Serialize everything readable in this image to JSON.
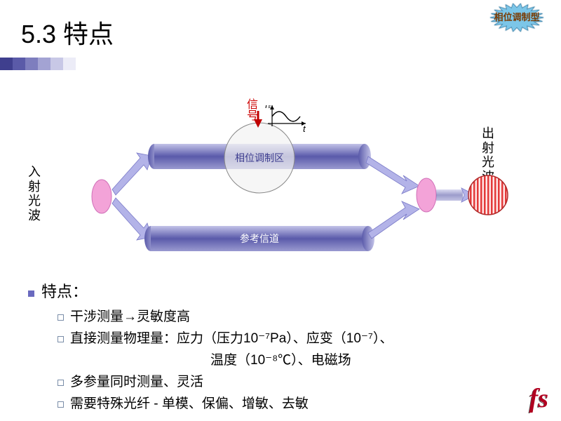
{
  "title": "5.3 特点",
  "titlebar_colors": [
    "#3f3f8e",
    "#5a5aa8",
    "#7e7ebe",
    "#a3a3d3",
    "#c8c8e6",
    "#ececf7",
    "#ffffff"
  ],
  "starburst": {
    "fill": "#7cc6e8",
    "stroke": "#4a90b8",
    "text": "相位调制型"
  },
  "diagram": {
    "left_label": "入射光波",
    "right_label": "出射光波",
    "signal_label": "信号",
    "axis_y": "Iₛ",
    "axis_x": "t",
    "tube1_label": "相位调制区",
    "tube2_label": "参考信道",
    "tube_grad_top": "#c3c3e8",
    "tube_grad_mid": "#5a5aaa",
    "tube_grad_bot": "#9a9ad0",
    "tube_label_color": "#3e3e90",
    "circle_stroke": "#888",
    "circle_fill": "#f2f2f2",
    "ellipse_fill": "#f3a3d8",
    "ellipse_stroke": "#d070b8",
    "arrow_fill": "#b3b3e8",
    "arrow_stroke": "#7a7ac8",
    "red_arrow": "#c00000",
    "interf_fill": "#e33a3a",
    "interf_bg": "#ffe8e8"
  },
  "bullets": {
    "header": "特点：",
    "items": [
      "干涉测量→灵敏度高",
      "直接测量物理量：应力（压力10⁻⁷Pa）、应变（10⁻⁷）、",
      "温度（10⁻⁸℃）、电磁场",
      "多参量同时测量、灵活",
      "需要特殊光纤 - 单模、保偏、增敏、去敏"
    ]
  },
  "corner": "fs"
}
